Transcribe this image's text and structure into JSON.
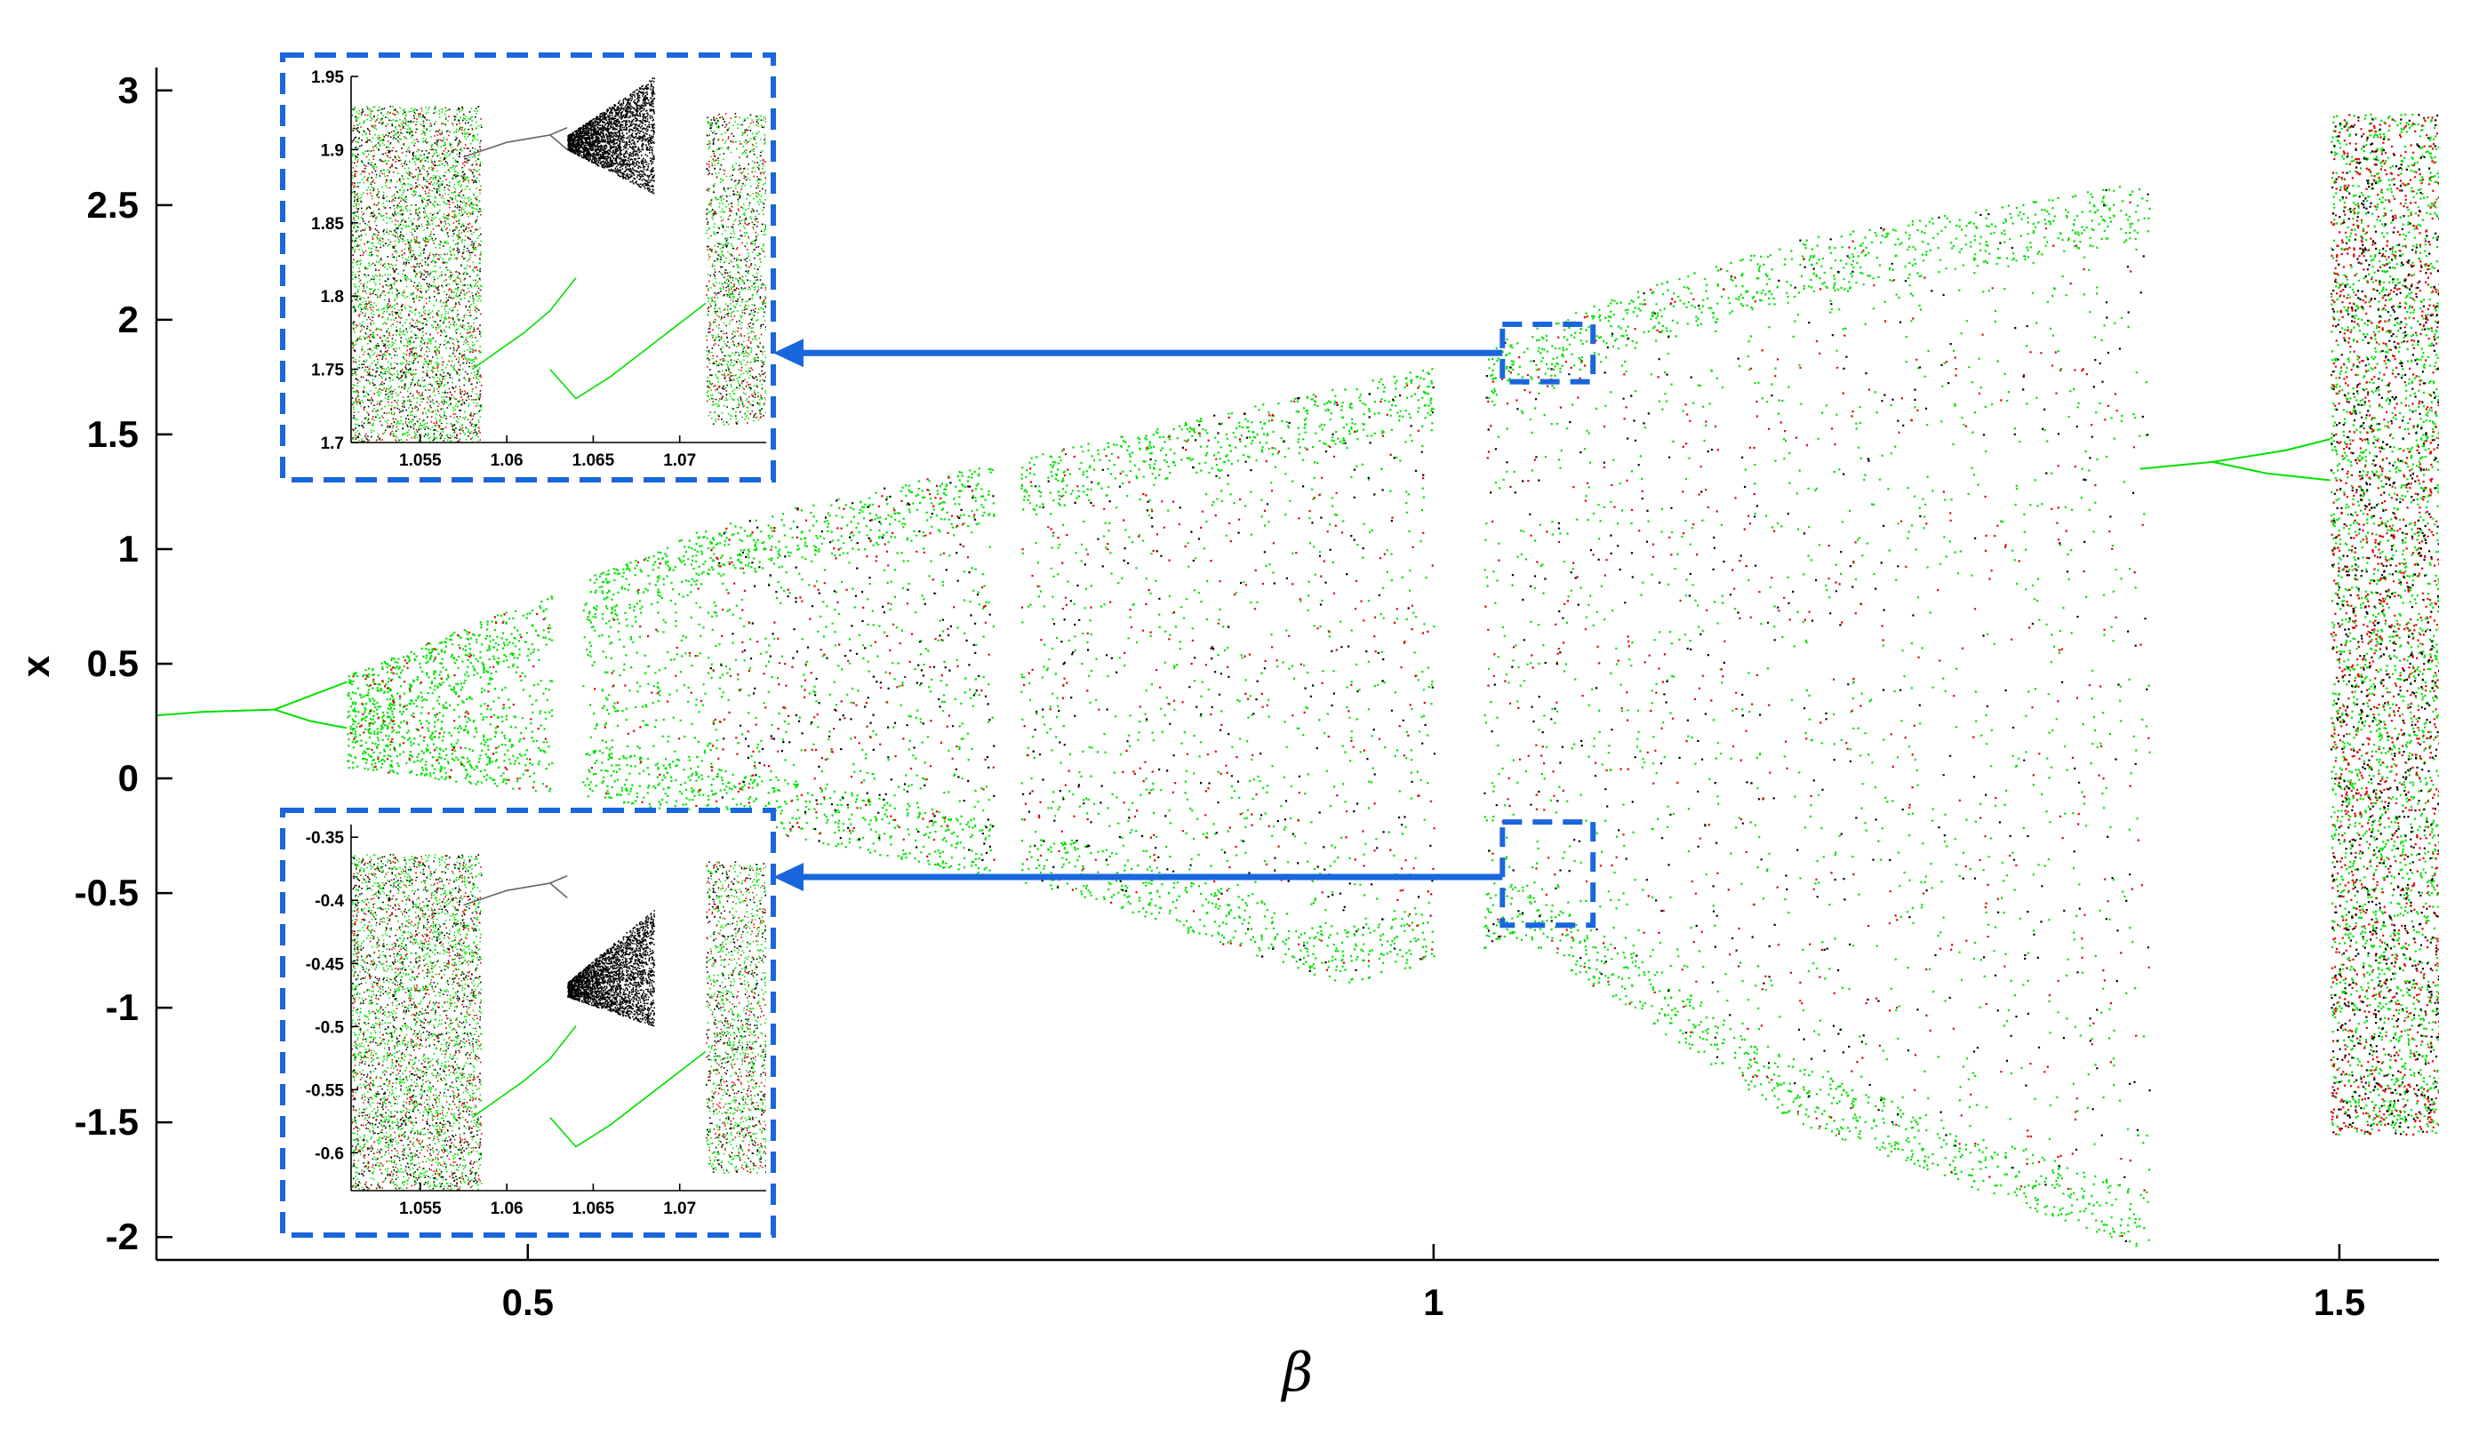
{
  "chart_data": {
    "type": "scatter",
    "title": "",
    "xlabel": "β",
    "ylabel": "x",
    "xlim": [
      0.295,
      1.555
    ],
    "ylim": [
      -2.1,
      3.1
    ],
    "xticks": [
      {
        "value": 0.5,
        "label": "0.5"
      },
      {
        "value": 1,
        "label": "1"
      },
      {
        "value": 1.5,
        "label": "1.5"
      }
    ],
    "yticks": [
      {
        "value": 3,
        "label": "3"
      },
      {
        "value": 2.5,
        "label": "2.5"
      },
      {
        "value": 2,
        "label": "2"
      },
      {
        "value": 1.5,
        "label": "1.5"
      },
      {
        "value": 1,
        "label": "1"
      },
      {
        "value": 0.5,
        "label": "0.5"
      },
      {
        "value": 0,
        "label": "0"
      },
      {
        "value": -0.5,
        "label": "-0.5"
      },
      {
        "value": -1,
        "label": "-1"
      },
      {
        "value": -1.5,
        "label": "-1.5"
      },
      {
        "value": -2,
        "label": "-2"
      }
    ],
    "grid": false,
    "series_colors": [
      "#00e000",
      "#e00000",
      "#000000"
    ],
    "main_branches": {
      "period1_x": [
        [
          0.295,
          0.275
        ],
        [
          0.32,
          0.29
        ],
        [
          0.36,
          0.3
        ]
      ],
      "upper_envelope": [
        [
          0.4,
          0.45
        ],
        [
          0.6,
          1.1
        ],
        [
          0.8,
          1.45
        ],
        [
          1.0,
          1.8
        ],
        [
          1.1,
          2.1
        ],
        [
          1.2,
          2.35
        ],
        [
          1.39,
          2.6
        ]
      ],
      "lower_envelope": [
        [
          0.4,
          0.05
        ],
        [
          0.55,
          -0.1
        ],
        [
          0.8,
          -0.5
        ],
        [
          0.95,
          -0.9
        ],
        [
          1.05,
          -0.7
        ],
        [
          1.2,
          -1.5
        ],
        [
          1.39,
          -2.05
        ]
      ],
      "periodic_windows": [
        0.525,
        0.765,
        1.02,
        1.063,
        1.43,
        1.495
      ]
    },
    "zoom_boxes": [
      {
        "xlim": [
          1.038,
          1.088
        ],
        "ylim": [
          1.73,
          1.98
        ]
      },
      {
        "xlim": [
          1.038,
          1.088
        ],
        "ylim": [
          -0.64,
          -0.19
        ]
      }
    ],
    "insets": [
      {
        "name": "upper-inset",
        "xlim": [
          1.051,
          1.075
        ],
        "ylim": [
          1.7,
          1.95
        ],
        "xticks": [
          "1.055",
          "1.06",
          "1.065",
          "1.07"
        ],
        "xtick_values": [
          1.055,
          1.06,
          1.065,
          1.07
        ],
        "yticks": [
          "1.95",
          "1.9",
          "1.85",
          "1.8",
          "1.75",
          "1.7"
        ],
        "ytick_values": [
          1.95,
          1.9,
          1.85,
          1.8,
          1.75,
          1.7
        ]
      },
      {
        "name": "lower-inset",
        "xlim": [
          1.051,
          1.075
        ],
        "ylim": [
          -0.63,
          -0.34
        ],
        "xticks": [
          "1.055",
          "1.06",
          "1.065",
          "1.07"
        ],
        "xtick_values": [
          1.055,
          1.06,
          1.065,
          1.07
        ],
        "yticks": [
          "-0.35",
          "-0.4",
          "-0.45",
          "-0.5",
          "-0.55",
          "-0.6"
        ],
        "ytick_values": [
          -0.35,
          -0.4,
          -0.45,
          -0.5,
          -0.55,
          -0.6
        ]
      }
    ]
  }
}
